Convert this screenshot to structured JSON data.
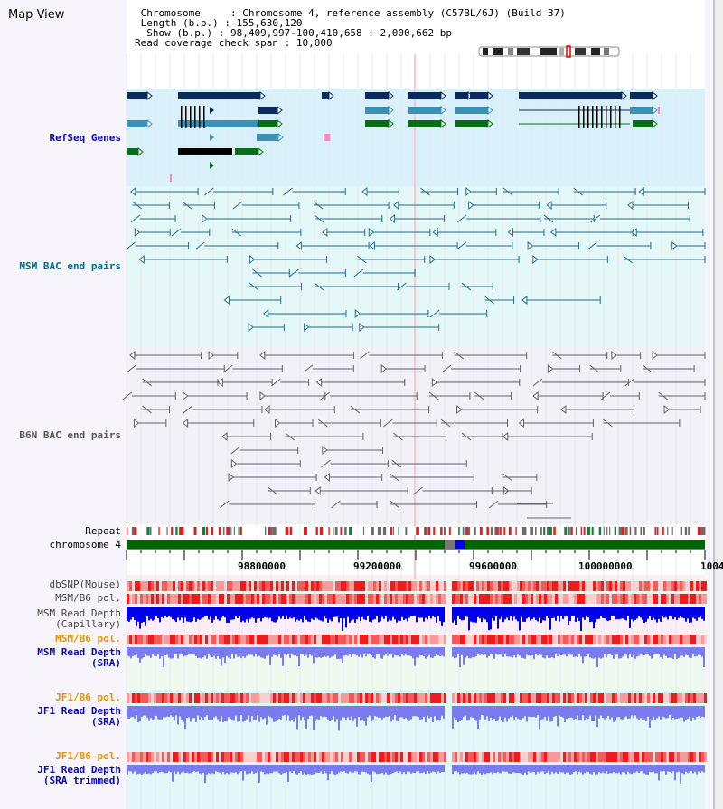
{
  "page": {
    "title": "Map View"
  },
  "info": {
    "chromosome_label": "Chromosome",
    "chromosome_value": "Chromosome 4, reference assembly (C57BL/6J) (Build 37)",
    "length_label": "Length (b.p.)",
    "length_value": "155,630,120",
    "show_label": "Show (b.p.)",
    "show_value": "98,409,997-100,410,658 : 2,000,662 bp",
    "coverage_label": "Read coverage check span",
    "coverage_value": "10,000"
  },
  "tracks": {
    "refseq": "RefSeq Genes",
    "msm_bac": "MSM BAC end pairs",
    "b6n_bac": "B6N BAC end pairs",
    "repeat": "Repeat",
    "chromosome": "chromosome 4",
    "dbsnp": "dbSNP(Mouse)",
    "msm_b6_pol": "MSM/B6 pol.",
    "msm_read_depth_cap_1": "MSM Read Depth",
    "msm_read_depth_cap_2": "(Capillary)",
    "msm_b6_pol_2": "MSM/B6 pol.",
    "msm_read_depth_sra_1": "MSM Read Depth",
    "msm_read_depth_sra_2": "(SRA)",
    "jf1_b6_pol": "JF1/B6 pol.",
    "jf1_read_depth_sra_1": "JF1 Read Depth",
    "jf1_read_depth_sra_2": "(SRA)",
    "jf1_b6_pol_2": "JF1/B6 pol.",
    "jf1_read_depth_trim_1": "JF1 Read Depth",
    "jf1_read_depth_trim_2": "(SRA trimmed)"
  },
  "axis": {
    "ticks": [
      "98800000",
      "99200000",
      "99600000",
      "100000000",
      "1004"
    ]
  },
  "colors": {
    "refseq_bg": "#d8f0f9",
    "bac_msm_bg": "#e4f8f8",
    "bac_b6n_bg": "#f3f1f8",
    "snp_bg": "#fdeef6",
    "sra_bg": "#eefaf0",
    "jf1_bg": "#e2f8f8",
    "label_blue": "#0b0ba8",
    "label_teal": "#006b8a",
    "label_gray": "#555555",
    "label_orange": "#e39400",
    "gene_dark": "#0a2a5e",
    "gene_mid": "#3d8fb4",
    "gene_green": "#0a6b1a",
    "chrom_green": "#006400",
    "depth_blue": "#0000e8",
    "depth_light": "#7b7bf0"
  }
}
